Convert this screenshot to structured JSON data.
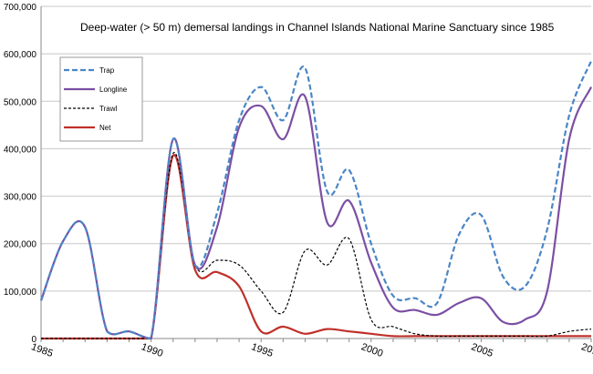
{
  "chart_data": {
    "type": "line",
    "title": "Deep-water (> 50 m) demersal landings in Channel Islands National Marine Sanctuary since 1985",
    "xlabel": "",
    "ylabel": "",
    "xlim": [
      1985,
      2010
    ],
    "ylim": [
      0,
      700000
    ],
    "y_ticks": [
      0,
      100000,
      200000,
      300000,
      400000,
      500000,
      600000,
      700000
    ],
    "y_tick_labels": [
      "0",
      "100,000",
      "200,000",
      "300,000",
      "400,000",
      "500,000",
      "600,000",
      "700,000"
    ],
    "x_ticks": [
      1985,
      1990,
      1995,
      2000,
      2005,
      2010
    ],
    "x_tick_labels": [
      "1985",
      "1990",
      "1995",
      "2000",
      "2005",
      "2010"
    ],
    "grid": "horizontal",
    "legend": "top-left",
    "x": [
      1985,
      1986,
      1987,
      1988,
      1989,
      1990,
      1991,
      1992,
      1993,
      1994,
      1995,
      1996,
      1997,
      1998,
      1999,
      2000,
      2001,
      2002,
      2003,
      2004,
      2005,
      2006,
      2007,
      2008,
      2009,
      2010
    ],
    "series": [
      {
        "name": "Trap",
        "color": "#4a86c6",
        "dash": "dashed",
        "values": [
          80000,
          205000,
          235000,
          15000,
          15000,
          0,
          420000,
          155000,
          265000,
          460000,
          530000,
          460000,
          570000,
          310000,
          355000,
          200000,
          90000,
          85000,
          75000,
          220000,
          260000,
          130000,
          110000,
          230000,
          470000,
          585000
        ]
      },
      {
        "name": "Longline",
        "color": "#7b4fa3",
        "dash": "solid",
        "values": [
          80000,
          205000,
          235000,
          15000,
          15000,
          0,
          420000,
          155000,
          235000,
          445000,
          490000,
          420000,
          510000,
          245000,
          290000,
          160000,
          65000,
          60000,
          50000,
          75000,
          85000,
          35000,
          40000,
          100000,
          420000,
          530000
        ]
      },
      {
        "name": "Trawl",
        "color": "#000000",
        "dash": "dashed",
        "values": [
          0,
          0,
          0,
          0,
          0,
          0,
          390000,
          155000,
          165000,
          155000,
          100000,
          55000,
          185000,
          155000,
          210000,
          40000,
          25000,
          10000,
          5000,
          5000,
          5000,
          5000,
          5000,
          5000,
          15000,
          20000
        ]
      },
      {
        "name": "Net",
        "color": "#c0302a",
        "dash": "solid",
        "values": [
          0,
          0,
          0,
          0,
          0,
          0,
          385000,
          145000,
          140000,
          110000,
          15000,
          25000,
          10000,
          20000,
          15000,
          10000,
          5000,
          5000,
          5000,
          5000,
          5000,
          5000,
          5000,
          5000,
          5000,
          5000
        ]
      }
    ]
  }
}
